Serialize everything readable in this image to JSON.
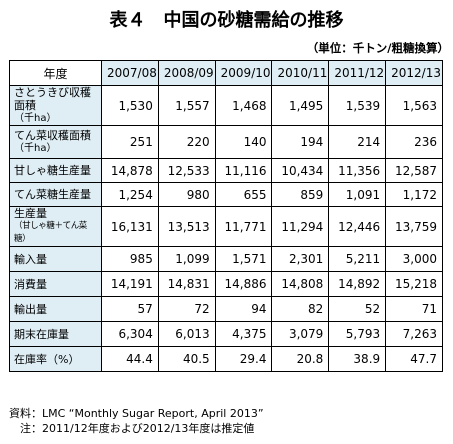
{
  "title": "表４　中国の砂糖需給の推移",
  "unit": "（単位：千トン/粗糖換算）",
  "header": {
    "label": "年度",
    "years": [
      "2007/08",
      "2008/09",
      "2009/10",
      "2010/11",
      "2011/12",
      "2012/13"
    ]
  },
  "rows": [
    {
      "label": "さとうきび収穫面積",
      "sub": "（千ha）",
      "values": [
        "1,530",
        "1,557",
        "1,468",
        "1,495",
        "1,539",
        "1,563"
      ]
    },
    {
      "label": "てん菜収穫面積",
      "sub": "（千ha）",
      "values": [
        "251",
        "220",
        "140",
        "194",
        "214",
        "236"
      ]
    },
    {
      "label": "甘しゃ糖生産量",
      "values": [
        "14,878",
        "12,533",
        "11,116",
        "10,434",
        "11,356",
        "12,587"
      ]
    },
    {
      "label": "てん菜糖生産量",
      "values": [
        "1,254",
        "980",
        "655",
        "859",
        "1,091",
        "1,172"
      ]
    },
    {
      "label": "生産量",
      "sub2": "（甘しゃ糖＋てん菜糖）",
      "values": [
        "16,131",
        "13,513",
        "11,771",
        "11,294",
        "12,446",
        "13,759"
      ]
    },
    {
      "label": "輸入量",
      "values": [
        "985",
        "1,099",
        "1,571",
        "2,301",
        "5,211",
        "3,000"
      ]
    },
    {
      "label": "消費量",
      "values": [
        "14,191",
        "14,831",
        "14,886",
        "14,808",
        "14,892",
        "15,218"
      ]
    },
    {
      "label": "輸出量",
      "values": [
        "57",
        "72",
        "94",
        "82",
        "52",
        "71"
      ]
    },
    {
      "label": "期末在庫量",
      "values": [
        "6,304",
        "6,013",
        "4,375",
        "3,079",
        "5,793",
        "7,263"
      ]
    },
    {
      "label": "在庫率（%）",
      "values": [
        "44.4",
        "40.5",
        "29.4",
        "20.8",
        "38.9",
        "47.7"
      ]
    }
  ],
  "footnotes": {
    "source": "資料：LMC “Monthly Sugar Report, April 2013”",
    "note": "　注：2011/12年度および2012/13年度は推定値"
  }
}
